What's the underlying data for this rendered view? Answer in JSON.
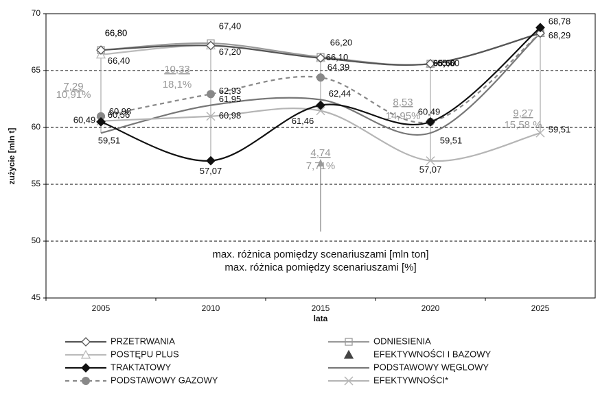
{
  "chart_data": {
    "type": "line",
    "x_label": "lata",
    "y_label": "zużycie [mln t]",
    "categories": [
      "2005",
      "2010",
      "2015",
      "2020",
      "2025"
    ],
    "ylim": [
      45,
      70
    ],
    "yticks": [
      45,
      50,
      55,
      60,
      65,
      70
    ],
    "grid": true,
    "series": [
      {
        "name": "PRZETRWANIA",
        "color": "#555555",
        "marker": "diamond-open",
        "values": [
          66.8,
          67.2,
          66.1,
          65.6,
          68.29
        ],
        "value_labels": [
          "66,80",
          "67,20",
          "66,10",
          null,
          null
        ]
      },
      {
        "name": "ODNIESIENIA",
        "color": "#999999",
        "marker": "square-open",
        "values": [
          66.8,
          67.4,
          66.2,
          65.6,
          68.29
        ],
        "value_labels": [
          "66,80",
          "67,40",
          "66,20",
          "65,60",
          null
        ]
      },
      {
        "name": "POSTĘPU PLUS",
        "color": "#bbbbbb",
        "marker": "triangle-open",
        "values": [
          66.4,
          67.2,
          66.1,
          65.6,
          68.29
        ],
        "value_labels": [
          "66,40",
          null,
          null,
          "65,60",
          null
        ]
      },
      {
        "name": "EFEKTYWNOŚCI I BAZOWY",
        "color": "#444444",
        "marker": "triangle",
        "values": [
          null,
          null,
          null,
          null,
          null
        ]
      },
      {
        "name": "TRAKTATOWY",
        "color": "#111111",
        "marker": "diamond",
        "values": [
          60.49,
          57.07,
          61.95,
          60.49,
          68.78
        ],
        "value_labels": [
          "60,49",
          "57,07",
          null,
          null,
          "68,78"
        ]
      },
      {
        "name": "PODSTAWOWY WĘGLOWY",
        "color": "#777777",
        "marker": "none",
        "values": [
          59.51,
          61.95,
          62.44,
          59.51,
          68.29
        ],
        "value_labels": [
          "59,51",
          "61,95",
          "62,44",
          "59,51",
          "68,29"
        ]
      },
      {
        "name": "PODSTAWOWY GAZOWY",
        "color": "#888888",
        "marker": "circle",
        "dashed": true,
        "values": [
          60.98,
          62.93,
          64.39,
          60.49,
          68.29
        ],
        "value_labels": [
          "60,98",
          "62,93",
          "64,39",
          "60,49",
          null
        ]
      },
      {
        "name": "EFEKTYWNOŚCI*",
        "color": "#b5b5b5",
        "marker": "x",
        "values": [
          60.56,
          60.98,
          61.46,
          57.07,
          59.51
        ],
        "value_labels": [
          "60,56",
          "60,98",
          "61,46",
          "57,07",
          "59,51"
        ]
      }
    ],
    "differences": [
      {
        "value": "7,29",
        "percent": "10,91%"
      },
      {
        "value": "10,33",
        "percent": "18,1%"
      },
      {
        "value": "4,74",
        "percent": "7,71%"
      },
      {
        "value": "8,53",
        "percent": "14,95%"
      },
      {
        "value": "9,27",
        "percent": "15,58 %"
      }
    ],
    "annotation": [
      "max. różnica pomiędzy scenariuszami [mln ton]",
      "max. różnica pomiędzy scenariuszami [%]"
    ]
  }
}
